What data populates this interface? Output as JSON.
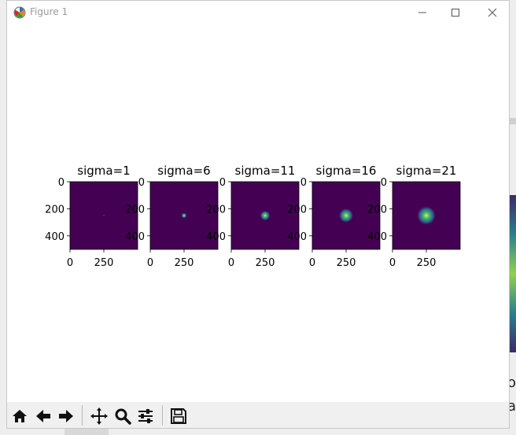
{
  "window": {
    "title": "Figure 1",
    "controls": [
      "minimize",
      "maximize",
      "close"
    ]
  },
  "background_partial_text": [
    "o",
    "a"
  ],
  "toolbar": {
    "buttons": [
      "home-icon",
      "back-icon",
      "forward-icon",
      "pan-icon",
      "zoom-icon",
      "configure-subplots-icon",
      "save-icon"
    ]
  },
  "colors": {
    "image_bg": "#440154",
    "viridis_ramp": [
      "#440154",
      "#31688e",
      "#35b779",
      "#fde725"
    ]
  },
  "chart_data": [
    {
      "type": "heatmap",
      "title": "sigma=1",
      "xticks": [
        "0",
        "250"
      ],
      "yticks": [
        "0",
        "200",
        "400"
      ],
      "xlim": [
        0,
        500
      ],
      "ylim": [
        500,
        0
      ],
      "peak": [
        250,
        250
      ],
      "sigma": 1
    },
    {
      "type": "heatmap",
      "title": "sigma=6",
      "xticks": [
        "0",
        "250"
      ],
      "yticks": [
        "0",
        "200",
        "400"
      ],
      "xlim": [
        0,
        500
      ],
      "ylim": [
        500,
        0
      ],
      "peak": [
        250,
        250
      ],
      "sigma": 6
    },
    {
      "type": "heatmap",
      "title": "sigma=11",
      "xticks": [
        "0",
        "250"
      ],
      "yticks": [
        "0",
        "200",
        "400"
      ],
      "xlim": [
        0,
        500
      ],
      "ylim": [
        500,
        0
      ],
      "peak": [
        250,
        250
      ],
      "sigma": 11
    },
    {
      "type": "heatmap",
      "title": "sigma=16",
      "xticks": [
        "0",
        "250"
      ],
      "yticks": [
        "0",
        "200",
        "400"
      ],
      "xlim": [
        0,
        500
      ],
      "ylim": [
        500,
        0
      ],
      "peak": [
        250,
        250
      ],
      "sigma": 16
    },
    {
      "type": "heatmap",
      "title": "sigma=21",
      "xticks": [
        "0",
        "250"
      ],
      "yticks": [
        "0",
        "200",
        "400"
      ],
      "xlim": [
        0,
        500
      ],
      "ylim": [
        500,
        0
      ],
      "peak": [
        250,
        250
      ],
      "sigma": 21
    }
  ]
}
